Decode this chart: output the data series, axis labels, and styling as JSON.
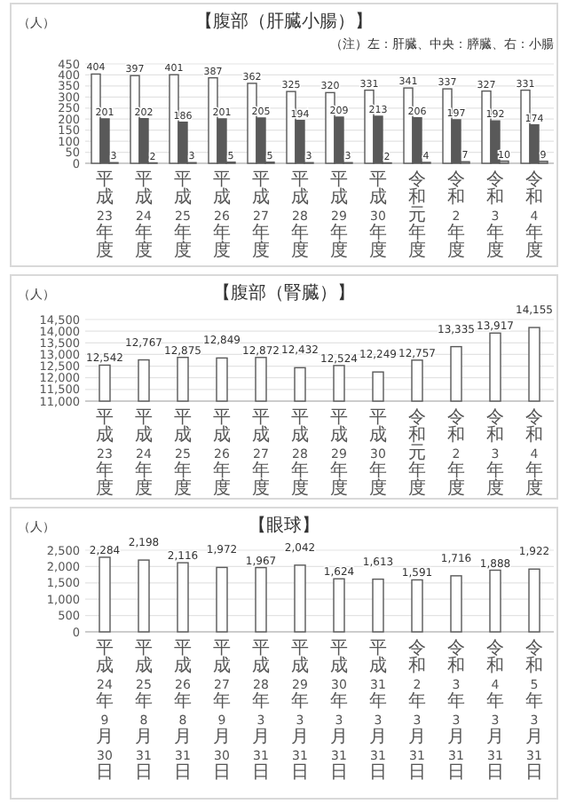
{
  "chart_data": [
    {
      "type": "bar",
      "title": "【腹部（肝臓小腸）】",
      "ylabel": "（人）",
      "annotations": [
        "（注）左：肝臓、中央：膵臓、右：小腸"
      ],
      "categories": [
        "平成23年度",
        "平成24年度",
        "平成25年度",
        "平成26年度",
        "平成27年度",
        "平成28年度",
        "平成29年度",
        "平成30年度",
        "令和元年度",
        "令和2年度",
        "令和3年度",
        "令和4年度"
      ],
      "series": [
        {
          "color": "#ffffff",
          "values": [
            404,
            397,
            401,
            387,
            362,
            325,
            320,
            331,
            341,
            337,
            327,
            331
          ]
        },
        {
          "color": "#595959",
          "values": [
            201,
            202,
            186,
            201,
            205,
            194,
            209,
            213,
            206,
            197,
            192,
            174
          ]
        },
        {
          "color": "#bfbfbf",
          "values": [
            3,
            2,
            3,
            5,
            5,
            3,
            3,
            2,
            4,
            7,
            10,
            9
          ]
        }
      ],
      "ylim": [
        0,
        450
      ],
      "yticks": [
        0,
        50,
        100,
        150,
        200,
        250,
        300,
        350,
        400,
        450
      ],
      "grid": "y",
      "data_labels": true
    },
    {
      "type": "bar",
      "title": "【腹部（腎臓）】",
      "ylabel": "（人）",
      "categories": [
        "平成23年度",
        "平成24年度",
        "平成25年度",
        "平成26年度",
        "平成27年度",
        "平成28年度",
        "平成29年度",
        "平成30年度",
        "令和元年度",
        "令和2年度",
        "令和3年度",
        "令和4年度"
      ],
      "series": [
        {
          "color": "#ffffff",
          "values": [
            12542,
            12767,
            12875,
            12849,
            12872,
            12432,
            12524,
            12249,
            12757,
            13335,
            13917,
            14155
          ]
        }
      ],
      "value_labels": [
        "12,542",
        "12,767",
        "12,875",
        "12,849",
        "12,872",
        "12,432",
        "12,524",
        "12,249",
        "12,757",
        "13,335",
        "13,917",
        "14,155"
      ],
      "ylim": [
        11000,
        14500
      ],
      "yticks": [
        {
          "value": 11000,
          "label": "11,000"
        },
        {
          "value": 11500,
          "label": "11,500"
        },
        {
          "value": 12000,
          "label": "12,000"
        },
        {
          "value": 12500,
          "label": "12,500"
        },
        {
          "value": 13000,
          "label": "13,000"
        },
        {
          "value": 13500,
          "label": "13,500"
        },
        {
          "value": 14000,
          "label": "14,000"
        },
        {
          "value": 14500,
          "label": "14,500"
        }
      ],
      "grid": "y"
    },
    {
      "type": "bar",
      "title": "【眼球】",
      "ylabel": "（人）",
      "categories": [
        "平成24年9月30日",
        "平成25年8月31日",
        "平成26年8月31日",
        "平成27年9月30日",
        "平成28年3月31日",
        "平成29年3月31日",
        "平成30年3月31日",
        "平成31年3月31日",
        "令和2年3月31日",
        "令和3年3月31日",
        "令和4年3月31日",
        "令和5年3月31日"
      ],
      "series": [
        {
          "color": "#ffffff",
          "values": [
            2284,
            2198,
            2116,
            1972,
            1967,
            2042,
            1624,
            1613,
            1591,
            1716,
            1888,
            1922
          ]
        }
      ],
      "value_labels": [
        "2,284",
        "2,198",
        "2,116",
        "1,972",
        "1,967",
        "2,042",
        "1,624",
        "1,613",
        "1,591",
        "1,716",
        "1,888",
        "1,922"
      ],
      "ylim": [
        0,
        2500
      ],
      "yticks": [
        0,
        {
          "value": 500,
          "label": "500"
        },
        {
          "value": 1000,
          "label": "1,000"
        },
        {
          "value": 1500,
          "label": "1,500"
        },
        {
          "value": 2000,
          "label": "2,000"
        },
        {
          "value": 2500,
          "label": "2,500"
        }
      ],
      "grid": "y"
    }
  ]
}
